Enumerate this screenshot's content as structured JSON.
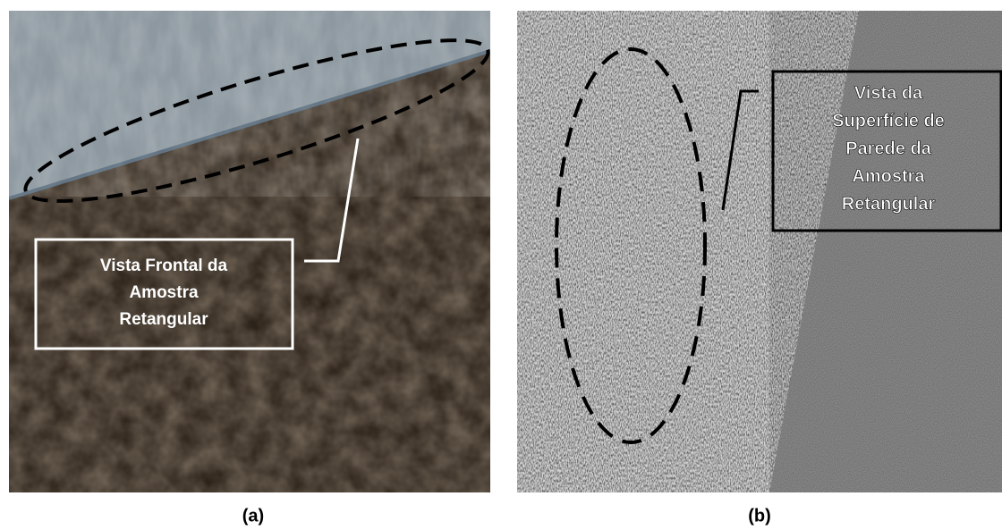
{
  "panels": [
    {
      "caption": "(a)",
      "annotation": {
        "lines": [
          "Vista Frontal da",
          "Amostra",
          "Retangular"
        ]
      }
    },
    {
      "caption": "(b)",
      "annotation": {
        "lines": [
          "Vista da",
          "Superfície de",
          "Parede da",
          "Amostra",
          "Retangular"
        ]
      }
    }
  ]
}
